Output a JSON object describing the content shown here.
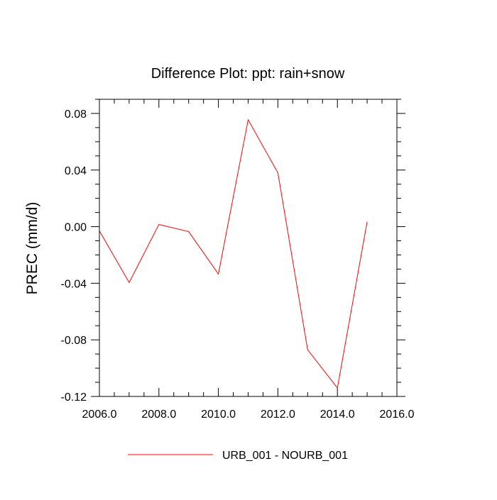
{
  "chart_data": {
    "type": "line",
    "title": "Difference Plot: ppt: rain+snow",
    "xlabel": "",
    "ylabel": "PREC  (mm/d)",
    "xlim": [
      2006,
      2016
    ],
    "ylim": [
      -0.12,
      0.09
    ],
    "x_ticks": [
      2006,
      2008,
      2010,
      2012,
      2014,
      2016
    ],
    "x_tick_labels": [
      "2006.0",
      "2008.0",
      "2010.0",
      "2012.0",
      "2014.0",
      "2016.0"
    ],
    "y_ticks": [
      -0.12,
      -0.08,
      -0.04,
      0.0,
      0.04,
      0.08
    ],
    "y_tick_labels": [
      "-0.12",
      "-0.08",
      "-0.04",
      "0.00",
      "0.04",
      "0.08"
    ],
    "grid": false,
    "legend_position": "bottom-center",
    "series": [
      {
        "name": "URB_001 - NOURB_001",
        "color": "#ff0000",
        "x": [
          2006,
          2007,
          2008,
          2009,
          2010,
          2011,
          2012,
          2013,
          2014,
          2015
        ],
        "values": [
          -0.003,
          -0.0395,
          0.0015,
          -0.0035,
          -0.0335,
          0.0755,
          0.038,
          -0.087,
          -0.114,
          0.0035
        ]
      }
    ]
  }
}
